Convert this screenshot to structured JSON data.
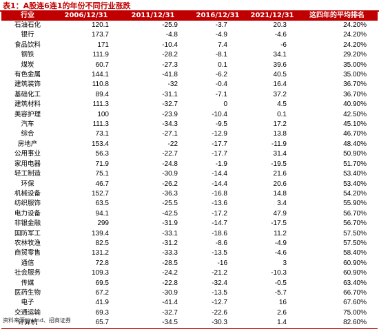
{
  "title": "表1：A股连6连1的年份不同行业涨跌",
  "headers": [
    "行业",
    "2006/12/31",
    "2011/12/31",
    "2016/12/31",
    "2021/12/31",
    "这四年的平均排名"
  ],
  "rows": [
    [
      "石油石化",
      "120.1",
      "-25.9",
      "-3.7",
      "20.3",
      "24.20%"
    ],
    [
      "银行",
      "173.7",
      "-4.8",
      "-4.9",
      "-4.6",
      "24.20%"
    ],
    [
      "食品饮料",
      "171",
      "-10.4",
      "7.4",
      "-6",
      "24.20%"
    ],
    [
      "钢铁",
      "111.9",
      "-28.2",
      "-8.1",
      "34.1",
      "29.20%"
    ],
    [
      "煤炭",
      "60.7",
      "-27.3",
      "0.1",
      "39.6",
      "35.00%"
    ],
    [
      "有色金属",
      "144.1",
      "-41.8",
      "-6.2",
      "40.5",
      "35.00%"
    ],
    [
      "建筑装饰",
      "110.8",
      "-32",
      "-0.4",
      "16.4",
      "36.70%"
    ],
    [
      "基础化工",
      "89.4",
      "-31.1",
      "-7.1",
      "37.2",
      "36.70%"
    ],
    [
      "建筑材料",
      "111.3",
      "-32.7",
      "0",
      "4.5",
      "40.90%"
    ],
    [
      "美容护理",
      "100",
      "-23.9",
      "-10.4",
      "0.1",
      "42.50%"
    ],
    [
      "汽车",
      "111.3",
      "-34.3",
      "-9.5",
      "17.2",
      "45.10%"
    ],
    [
      "综合",
      "73.1",
      "-27.1",
      "-12.9",
      "13.8",
      "46.70%"
    ],
    [
      "房地产",
      "153.4",
      "-22",
      "-17.7",
      "-11.9",
      "48.40%"
    ],
    [
      "公用事业",
      "56.3",
      "-22.7",
      "-17.7",
      "31.4",
      "50.90%"
    ],
    [
      "家用电器",
      "71.9",
      "-24.8",
      "-1.9",
      "-19.5",
      "51.70%"
    ],
    [
      "轻工制造",
      "75.1",
      "-30.9",
      "-14.4",
      "21.6",
      "53.40%"
    ],
    [
      "环保",
      "46.7",
      "-26.2",
      "-14.4",
      "20.6",
      "53.40%"
    ],
    [
      "机械设备",
      "152.7",
      "-36.3",
      "-16.8",
      "14.8",
      "54.20%"
    ],
    [
      "纺织服饰",
      "63.5",
      "-25.5",
      "-13.6",
      "3.4",
      "55.90%"
    ],
    [
      "电力设备",
      "94.1",
      "-42.5",
      "-17.2",
      "47.9",
      "56.70%"
    ],
    [
      "非银金融",
      "299",
      "-31.9",
      "-14.7",
      "-17.5",
      "56.70%"
    ],
    [
      "国防军工",
      "139.4",
      "-33.1",
      "-18.6",
      "11.2",
      "57.50%"
    ],
    [
      "农林牧渔",
      "82.5",
      "-31.2",
      "-8.6",
      "-4.9",
      "57.50%"
    ],
    [
      "商贸零售",
      "131.2",
      "-33.3",
      "-13.5",
      "-4.6",
      "58.40%"
    ],
    [
      "通信",
      "72.8",
      "-28.5",
      "-16",
      "3",
      "60.90%"
    ],
    [
      "社会服务",
      "109.3",
      "-24.2",
      "-21.2",
      "-10.3",
      "60.90%"
    ],
    [
      "传媒",
      "69.5",
      "-22.8",
      "-32.4",
      "-0.5",
      "63.40%"
    ],
    [
      "医药生物",
      "67.2",
      "-30.9",
      "-13.5",
      "-5.7",
      "66.70%"
    ],
    [
      "电子",
      "41.9",
      "-41.4",
      "-12.7",
      "16",
      "67.60%"
    ],
    [
      "交通运输",
      "69.3",
      "-32.7",
      "-22.6",
      "2.6",
      "75.00%"
    ],
    [
      "计算机",
      "65.7",
      "-34.5",
      "-30.3",
      "1.4",
      "82.60%"
    ]
  ],
  "source": "资料来源：wind、招商证券",
  "accent_color": "#c00000"
}
